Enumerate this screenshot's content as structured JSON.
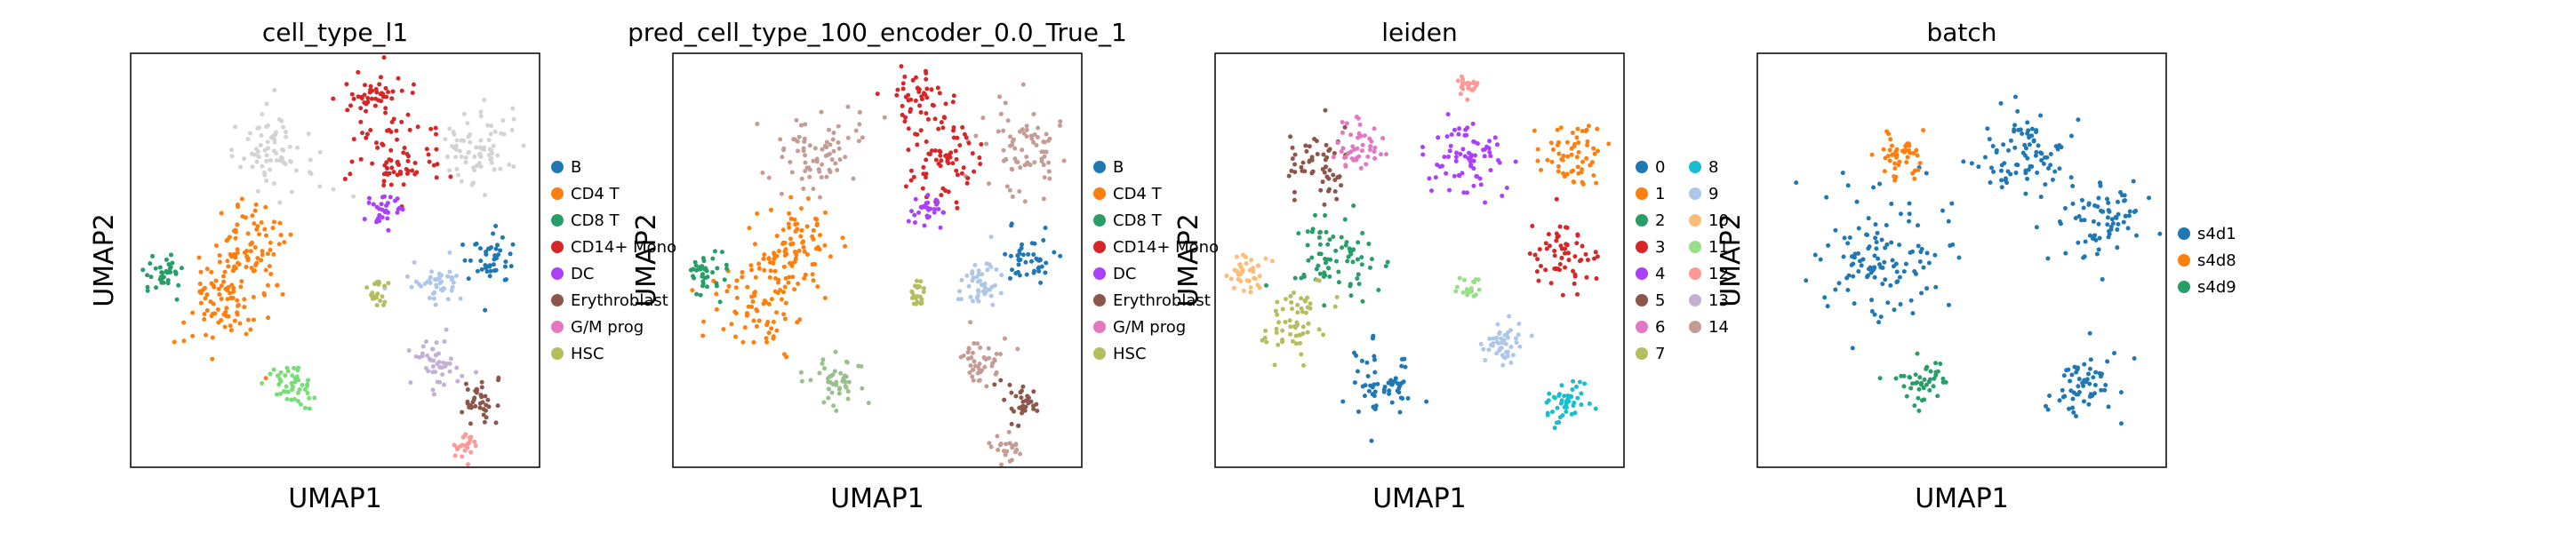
{
  "chart_data": [
    {
      "type": "scatter",
      "title": "cell_type_l1",
      "xlabel": "UMAP1",
      "ylabel": "UMAP2",
      "legend": {
        "placement": "right",
        "entries": [
          {
            "label": "B",
            "color": "#1f77b4"
          },
          {
            "label": "CD4 T",
            "color": "#ff7f0e"
          },
          {
            "label": "CD8 T",
            "color": "#279e68"
          },
          {
            "label": "CD14+ Mono",
            "color": "#d62728"
          },
          {
            "label": "DC",
            "color": "#aa40fc"
          },
          {
            "label": "Erythroblast",
            "color": "#8c564b"
          },
          {
            "label": "G/M prog",
            "color": "#e377c2"
          },
          {
            "label": "HSC",
            "color": "#b5bd61"
          }
        ]
      },
      "clusters": [
        {
          "color": "#d3d3d3",
          "x": 0.35,
          "y": 0.76,
          "spread": 0.05
        },
        {
          "color": "#d3d3d3",
          "x": 0.85,
          "y": 0.77,
          "spread": 0.05
        },
        {
          "color": "#ff7f0e",
          "x": 0.22,
          "y": 0.4,
          "spread": 0.06
        },
        {
          "color": "#ff7f0e",
          "x": 0.3,
          "y": 0.53,
          "spread": 0.05
        },
        {
          "color": "#279e68",
          "x": 0.08,
          "y": 0.47,
          "spread": 0.025
        },
        {
          "color": "#d62728",
          "x": 0.66,
          "y": 0.75,
          "spread": 0.05
        },
        {
          "color": "#d62728",
          "x": 0.6,
          "y": 0.9,
          "spread": 0.03
        },
        {
          "color": "#1f77b4",
          "x": 0.88,
          "y": 0.5,
          "spread": 0.03
        },
        {
          "color": "#aec7e8",
          "x": 0.75,
          "y": 0.45,
          "spread": 0.03
        },
        {
          "color": "#77dd77",
          "x": 0.4,
          "y": 0.2,
          "spread": 0.03
        },
        {
          "color": "#8c564b",
          "x": 0.85,
          "y": 0.16,
          "spread": 0.025
        },
        {
          "color": "#c5b0d5",
          "x": 0.75,
          "y": 0.25,
          "spread": 0.03
        },
        {
          "color": "#aa40fc",
          "x": 0.62,
          "y": 0.62,
          "spread": 0.02
        },
        {
          "color": "#b5bd61",
          "x": 0.6,
          "y": 0.42,
          "spread": 0.015
        },
        {
          "color": "#ff9896",
          "x": 0.82,
          "y": 0.05,
          "spread": 0.015
        }
      ]
    },
    {
      "type": "scatter",
      "title": "pred_cell_type_100_encoder_0.0_True_1",
      "xlabel": "UMAP1",
      "ylabel": "UMAP2",
      "legend": {
        "placement": "right",
        "entries": [
          {
            "label": "B",
            "color": "#1f77b4"
          },
          {
            "label": "CD4 T",
            "color": "#ff7f0e"
          },
          {
            "label": "CD8 T",
            "color": "#279e68"
          },
          {
            "label": "CD14+ Mono",
            "color": "#d62728"
          },
          {
            "label": "DC",
            "color": "#aa40fc"
          },
          {
            "label": "Erythroblast",
            "color": "#8c564b"
          },
          {
            "label": "G/M prog",
            "color": "#e377c2"
          },
          {
            "label": "HSC",
            "color": "#b5bd61"
          }
        ]
      },
      "clusters": [
        {
          "color": "#c49c94",
          "x": 0.35,
          "y": 0.76,
          "spread": 0.05
        },
        {
          "color": "#c49c94",
          "x": 0.85,
          "y": 0.77,
          "spread": 0.05
        },
        {
          "color": "#ff7f0e",
          "x": 0.22,
          "y": 0.4,
          "spread": 0.06
        },
        {
          "color": "#ff7f0e",
          "x": 0.3,
          "y": 0.53,
          "spread": 0.05
        },
        {
          "color": "#279e68",
          "x": 0.08,
          "y": 0.47,
          "spread": 0.025
        },
        {
          "color": "#d62728",
          "x": 0.66,
          "y": 0.75,
          "spread": 0.05
        },
        {
          "color": "#d62728",
          "x": 0.6,
          "y": 0.9,
          "spread": 0.03
        },
        {
          "color": "#1f77b4",
          "x": 0.88,
          "y": 0.5,
          "spread": 0.03
        },
        {
          "color": "#aec7e8",
          "x": 0.75,
          "y": 0.45,
          "spread": 0.03
        },
        {
          "color": "#98c08c",
          "x": 0.4,
          "y": 0.2,
          "spread": 0.03
        },
        {
          "color": "#8c564b",
          "x": 0.85,
          "y": 0.16,
          "spread": 0.025
        },
        {
          "color": "#c49c94",
          "x": 0.75,
          "y": 0.25,
          "spread": 0.03
        },
        {
          "color": "#aa40fc",
          "x": 0.62,
          "y": 0.62,
          "spread": 0.02
        },
        {
          "color": "#b5bd61",
          "x": 0.6,
          "y": 0.42,
          "spread": 0.015
        },
        {
          "color": "#c49c94",
          "x": 0.82,
          "y": 0.05,
          "spread": 0.015
        }
      ]
    },
    {
      "type": "scatter",
      "title": "leiden",
      "xlabel": "UMAP1",
      "ylabel": "UMAP2",
      "legend": {
        "placement": "right",
        "columns": 2,
        "entries": [
          {
            "label": "0",
            "color": "#1f77b4"
          },
          {
            "label": "1",
            "color": "#ff7f0e"
          },
          {
            "label": "2",
            "color": "#279e68"
          },
          {
            "label": "3",
            "color": "#d62728"
          },
          {
            "label": "4",
            "color": "#aa40fc"
          },
          {
            "label": "5",
            "color": "#8c564b"
          },
          {
            "label": "6",
            "color": "#e377c2"
          },
          {
            "label": "7",
            "color": "#b5bd61"
          },
          {
            "label": "8",
            "color": "#17becf"
          },
          {
            "label": "9",
            "color": "#aec7e8"
          },
          {
            "label": "10",
            "color": "#ffbb78"
          },
          {
            "label": "11",
            "color": "#98df8a"
          },
          {
            "label": "12",
            "color": "#ff9896"
          },
          {
            "label": "13",
            "color": "#c5b0d5"
          },
          {
            "label": "14",
            "color": "#c49c94"
          }
        ]
      },
      "clusters": [
        {
          "color": "#8c564b",
          "x": 0.25,
          "y": 0.72,
          "spread": 0.04
        },
        {
          "color": "#e377c2",
          "x": 0.35,
          "y": 0.78,
          "spread": 0.03
        },
        {
          "color": "#ff7f0e",
          "x": 0.88,
          "y": 0.75,
          "spread": 0.04
        },
        {
          "color": "#279e68",
          "x": 0.3,
          "y": 0.5,
          "spread": 0.05
        },
        {
          "color": "#ffbb78",
          "x": 0.08,
          "y": 0.47,
          "spread": 0.025
        },
        {
          "color": "#b5bd61",
          "x": 0.2,
          "y": 0.35,
          "spread": 0.04
        },
        {
          "color": "#aa40fc",
          "x": 0.62,
          "y": 0.75,
          "spread": 0.05
        },
        {
          "color": "#d62728",
          "x": 0.85,
          "y": 0.5,
          "spread": 0.04
        },
        {
          "color": "#1f77b4",
          "x": 0.4,
          "y": 0.2,
          "spread": 0.04
        },
        {
          "color": "#aec7e8",
          "x": 0.7,
          "y": 0.3,
          "spread": 0.03
        },
        {
          "color": "#17becf",
          "x": 0.85,
          "y": 0.15,
          "spread": 0.03
        },
        {
          "color": "#98df8a",
          "x": 0.62,
          "y": 0.43,
          "spread": 0.015
        },
        {
          "color": "#ff9896",
          "x": 0.62,
          "y": 0.92,
          "spread": 0.015
        }
      ]
    },
    {
      "type": "scatter",
      "title": "batch",
      "xlabel": "UMAP1",
      "ylabel": "UMAP2",
      "legend": {
        "placement": "right",
        "entries": [
          {
            "label": "s4d1",
            "color": "#1f77b4"
          },
          {
            "label": "s4d8",
            "color": "#ff7f0e"
          },
          {
            "label": "s4d9",
            "color": "#279e68"
          }
        ]
      },
      "clusters": [
        {
          "color": "#1f77b4",
          "x": 0.3,
          "y": 0.5,
          "spread": 0.08
        },
        {
          "color": "#1f77b4",
          "x": 0.65,
          "y": 0.75,
          "spread": 0.06
        },
        {
          "color": "#1f77b4",
          "x": 0.85,
          "y": 0.6,
          "spread": 0.05
        },
        {
          "color": "#ff7f0e",
          "x": 0.35,
          "y": 0.75,
          "spread": 0.03
        },
        {
          "color": "#279e68",
          "x": 0.4,
          "y": 0.2,
          "spread": 0.03
        },
        {
          "color": "#1f77b4",
          "x": 0.8,
          "y": 0.2,
          "spread": 0.04
        }
      ]
    }
  ]
}
